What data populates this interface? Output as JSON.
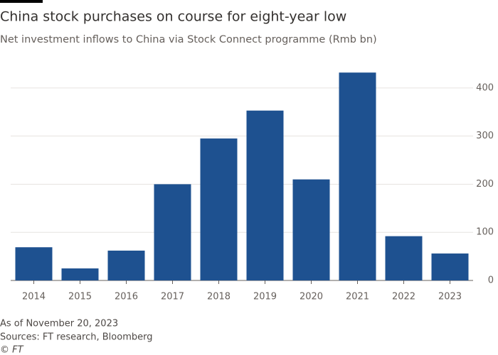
{
  "chart_data": {
    "type": "bar",
    "title": "China stock purchases on course for eight-year low",
    "subtitle": "Net investment inflows to China via Stock Connect programme (Rmb bn)",
    "categories": [
      "2014",
      "2015",
      "2016",
      "2017",
      "2018",
      "2019",
      "2020",
      "2021",
      "2022",
      "2023"
    ],
    "values": [
      69,
      25,
      62,
      200,
      295,
      353,
      210,
      432,
      92,
      56
    ],
    "color": "#1e5190",
    "ylim": [
      0,
      450
    ],
    "yticks": [
      0,
      100,
      200,
      300,
      400
    ],
    "grid": true,
    "note": "As of November 20, 2023",
    "source": "Sources: FT research, Bloomberg",
    "credit": "© FT"
  }
}
